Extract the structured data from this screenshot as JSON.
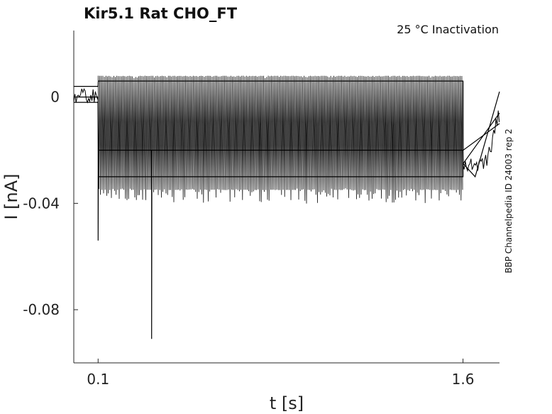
{
  "chart_data": {
    "type": "line",
    "title": "Kir5.1  Rat  CHO_FT",
    "subtitle": "25 °C  Inactivation",
    "xlabel": "t [s]",
    "ylabel": "I [nA]",
    "side_label": "BBP Channelpedia ID 24003 rep 2",
    "xlim": [
      0.0,
      1.75
    ],
    "ylim": [
      -0.1,
      0.025
    ],
    "xticks": [
      {
        "value": 0.1,
        "label": "0.1"
      },
      {
        "value": 1.6,
        "label": "1.6"
      }
    ],
    "yticks": [
      {
        "value": 0,
        "label": "0"
      },
      {
        "value": -0.04,
        "label": "-0.04"
      },
      {
        "value": -0.08,
        "label": "-0.08"
      }
    ],
    "grid": false,
    "line_color": "#000000",
    "series": [
      {
        "x": [
          0.0,
          0.1,
          0.1,
          0.101,
          1.6,
          1.6,
          1.65,
          1.75
        ],
        "y": [
          0.0,
          0.0,
          -0.054,
          -0.03,
          -0.03,
          -0.025,
          -0.03,
          0.002
        ]
      },
      {
        "x": [
          0.0,
          0.1,
          0.101,
          1.6,
          1.601,
          1.75
        ],
        "y": [
          0.004,
          0.004,
          0.006,
          0.006,
          -0.02,
          -0.01
        ]
      },
      {
        "x": [
          0.0,
          0.1,
          0.101,
          0.32,
          0.32,
          0.321,
          1.6,
          1.601,
          1.75
        ],
        "y": [
          -0.002,
          -0.002,
          -0.02,
          -0.02,
          -0.091,
          -0.02,
          -0.02,
          -0.025,
          -0.006
        ]
      }
    ],
    "band": {
      "x_start": 0.1,
      "x_end": 1.6,
      "y_upper": 0.008,
      "y_lower": -0.035
    }
  }
}
